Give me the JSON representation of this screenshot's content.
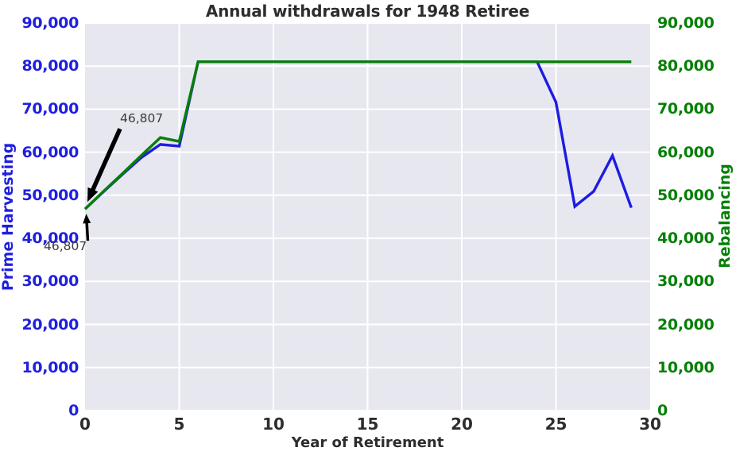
{
  "chart_data": {
    "type": "line",
    "title": "Annual withdrawals for 1948 Retiree",
    "xlabel": "Year of Retirement",
    "ylabel_left": "Prime Harvesting",
    "ylabel_right": "Rebalancing",
    "xlim": [
      0,
      30
    ],
    "ylim": [
      0,
      90000
    ],
    "grid": true,
    "legend": false,
    "x_tick_labels": [
      "0",
      "5",
      "10",
      "15",
      "20",
      "25",
      "30"
    ],
    "y_tick_labels": [
      "0",
      "10,000",
      "20,000",
      "30,000",
      "40,000",
      "50,000",
      "60,000",
      "70,000",
      "80,000",
      "90,000"
    ],
    "x": [
      0,
      1,
      2,
      3,
      4,
      5,
      6,
      7,
      8,
      9,
      10,
      11,
      12,
      13,
      14,
      15,
      16,
      17,
      18,
      19,
      20,
      21,
      22,
      23,
      24,
      25,
      26,
      27,
      28,
      29
    ],
    "series": [
      {
        "name": "Prime Harvesting",
        "axis": "left",
        "color": "#1c1ce2",
        "values": [
          46807,
          50900,
          54900,
          58800,
          61800,
          61400,
          81000,
          81000,
          81000,
          81000,
          81000,
          81000,
          81000,
          81000,
          81000,
          81000,
          81000,
          81000,
          81000,
          81000,
          81000,
          81000,
          81000,
          81000,
          81000,
          71600,
          47400,
          50900,
          59200,
          47100
        ]
      },
      {
        "name": "Rebalancing",
        "axis": "right",
        "color": "#067f06",
        "values": [
          46807,
          51000,
          55100,
          59300,
          63400,
          62500,
          81000,
          81000,
          81000,
          81000,
          81000,
          81000,
          81000,
          81000,
          81000,
          81000,
          81000,
          81000,
          81000,
          81000,
          81000,
          81000,
          81000,
          81000,
          81000,
          81000,
          81000,
          81000,
          81000,
          81000
        ]
      }
    ],
    "annotations": [
      {
        "text": "46,807",
        "target_year": 0,
        "value": 46807,
        "position": "above"
      },
      {
        "text": "46,807",
        "target_year": 0,
        "value": 46807,
        "position": "below"
      }
    ],
    "colors": {
      "plot_bg": "#e7e7f0",
      "grid": "#ffffff",
      "title": "#2d2d2d",
      "x_axis_text": "#2d2d2d",
      "left_axis_text": "#1f1fe0",
      "right_axis_text": "#067f06",
      "annotation_text": "#3a3a3a",
      "arrow": "#000000"
    }
  }
}
